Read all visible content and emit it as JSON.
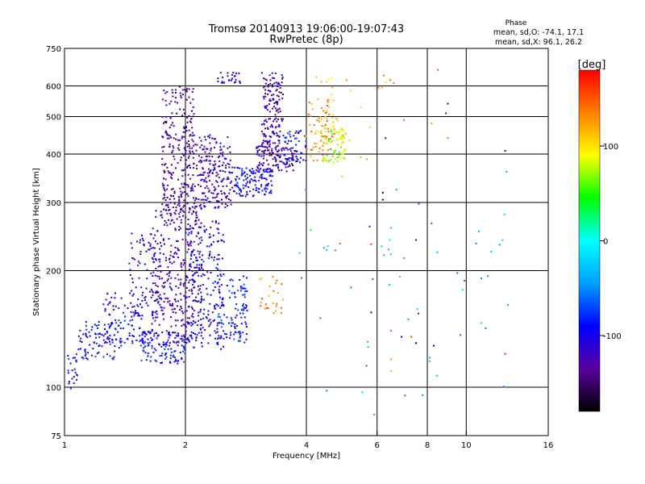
{
  "chart_data": {
    "type": "scatter",
    "title": "Tromsø 20140913 19:06:00-19:07:43",
    "subtitle": "RwPretec (8p)",
    "xlabel": "Frequency [MHz]",
    "ylabel": "Stationary phase Virtual Height [km]",
    "x_scale": "log",
    "y_scale": "log",
    "xlim": [
      1,
      16
    ],
    "ylim": [
      75,
      750
    ],
    "x_ticks": [
      {
        "value": 1,
        "label": "1"
      },
      {
        "value": 2,
        "label": "2"
      },
      {
        "value": 4,
        "label": "4"
      },
      {
        "value": 6,
        "label": "6"
      },
      {
        "value": 8,
        "label": "8"
      },
      {
        "value": 10,
        "label": "10"
      },
      {
        "value": 16,
        "label": "16"
      }
    ],
    "y_ticks": [
      {
        "value": 75,
        "label": "75"
      },
      {
        "value": 100,
        "label": "100"
      },
      {
        "value": 200,
        "label": "200"
      },
      {
        "value": 300,
        "label": "300"
      },
      {
        "value": 400,
        "label": "400"
      },
      {
        "value": 500,
        "label": "500"
      },
      {
        "value": 600,
        "label": "600"
      },
      {
        "value": 750,
        "label": "750"
      }
    ],
    "x_gridlines": [
      2,
      4,
      6,
      8,
      10
    ],
    "y_gridlines": [
      100,
      200,
      300,
      400,
      500,
      600
    ],
    "grid": true,
    "phase_stats": {
      "heading": "Phase",
      "line_o": "mean, sd,O: -74.1, 17.1",
      "line_x": "mean, sd,X:  96.1, 26.2"
    },
    "colorbar": {
      "label": "[deg]",
      "range": [
        -180,
        180
      ],
      "ticks": [
        {
          "value": 100,
          "label": "100"
        },
        {
          "value": 0,
          "label": "0"
        },
        {
          "value": -100,
          "label": "-100"
        }
      ],
      "colors": [
        "#000000",
        "#5a00a0",
        "#0000ff",
        "#00a0ff",
        "#00ffff",
        "#00ff00",
        "#ffff00",
        "#ff8000",
        "#ff0000"
      ]
    },
    "clusters": [
      {
        "f": [
          1.02,
          1.08
        ],
        "h": [
          98,
          122
        ],
        "phase": -95,
        "n": 22
      },
      {
        "f": [
          1.08,
          1.4
        ],
        "h": [
          118,
          148
        ],
        "phase": -92,
        "n": 90
      },
      {
        "f": [
          1.25,
          1.6
        ],
        "h": [
          130,
          175
        ],
        "phase": -100,
        "n": 90
      },
      {
        "f": [
          1.45,
          1.75
        ],
        "h": [
          150,
          250
        ],
        "phase": -105,
        "n": 100
      },
      {
        "f": [
          1.55,
          2.0
        ],
        "h": [
          115,
          140
        ],
        "phase": -90,
        "n": 120
      },
      {
        "f": [
          1.65,
          2.2
        ],
        "h": [
          130,
          300
        ],
        "phase": -120,
        "n": 330
      },
      {
        "f": [
          1.75,
          2.1
        ],
        "h": [
          280,
          600
        ],
        "phase": -135,
        "n": 260
      },
      {
        "f": [
          2.0,
          2.5
        ],
        "h": [
          125,
          270
        ],
        "phase": -100,
        "n": 220
      },
      {
        "f": [
          2.1,
          2.6
        ],
        "h": [
          290,
          450
        ],
        "phase": -115,
        "n": 200
      },
      {
        "f": [
          2.4,
          2.85
        ],
        "h": [
          130,
          190
        ],
        "phase": -85,
        "n": 90
      },
      {
        "f": [
          2.6,
          3.3
        ],
        "h": [
          310,
          370
        ],
        "phase": -95,
        "n": 130
      },
      {
        "f": [
          3.0,
          3.8
        ],
        "h": [
          360,
          420
        ],
        "phase": -118,
        "n": 110
      },
      {
        "f": [
          3.1,
          3.5
        ],
        "h": [
          400,
          650
        ],
        "phase": -125,
        "n": 170
      },
      {
        "f": [
          3.5,
          4.0
        ],
        "h": [
          380,
          460
        ],
        "phase": -85,
        "n": 50
      },
      {
        "f": [
          2.4,
          2.75
        ],
        "h": [
          610,
          650
        ],
        "phase": -110,
        "n": 25
      },
      {
        "f": [
          2.7,
          2.85
        ],
        "h": [
          150,
          200
        ],
        "phase": -80,
        "n": 20
      },
      {
        "f": [
          3.0,
          3.5
        ],
        "h": [
          155,
          195
        ],
        "phase": 135,
        "n": 25
      },
      {
        "f": [
          4.0,
          4.7
        ],
        "h": [
          380,
          560
        ],
        "phase": 135,
        "n": 70
      },
      {
        "f": [
          4.4,
          5.0
        ],
        "h": [
          380,
          470
        ],
        "phase": 75,
        "n": 70
      },
      {
        "f": [
          4.2,
          4.8
        ],
        "h": [
          450,
          650
        ],
        "phase": 100,
        "n": 25
      },
      {
        "f": [
          4.8,
          6.5
        ],
        "h": [
          350,
          640
        ],
        "phase": 120,
        "n": 18
      },
      {
        "f": [
          3.8,
          13.0
        ],
        "h": [
          95,
          330
        ],
        "phase": -40,
        "n": 45
      }
    ],
    "points": [
      {
        "f": 3.85,
        "h": 222,
        "phase": -20
      },
      {
        "f": 4.1,
        "h": 255,
        "phase": 40
      },
      {
        "f": 4.85,
        "h": 235,
        "phase": 150
      },
      {
        "f": 5.8,
        "h": 234,
        "phase": 165
      },
      {
        "f": 5.75,
        "h": 260,
        "phase": -80
      },
      {
        "f": 6.5,
        "h": 258,
        "phase": -30
      },
      {
        "f": 6.45,
        "h": 240,
        "phase": -10
      },
      {
        "f": 7.5,
        "h": 240,
        "phase": -130
      },
      {
        "f": 8.2,
        "h": 265,
        "phase": -60
      },
      {
        "f": 6.2,
        "h": 305,
        "phase": -170
      },
      {
        "f": 6.2,
        "h": 318,
        "phase": -170
      },
      {
        "f": 5.8,
        "h": 156,
        "phase": -100
      },
      {
        "f": 5.85,
        "h": 190,
        "phase": -60
      },
      {
        "f": 6.5,
        "h": 140,
        "phase": 150
      },
      {
        "f": 6.9,
        "h": 135,
        "phase": -100
      },
      {
        "f": 7.6,
        "h": 155,
        "phase": -80
      },
      {
        "f": 7.3,
        "h": 135,
        "phase": 160
      },
      {
        "f": 7.5,
        "h": 130,
        "phase": -170
      },
      {
        "f": 6.5,
        "h": 118,
        "phase": 130
      },
      {
        "f": 6.5,
        "h": 110,
        "phase": 115
      },
      {
        "f": 5.7,
        "h": 127,
        "phase": -30
      },
      {
        "f": 8.3,
        "h": 128,
        "phase": -90
      },
      {
        "f": 12.5,
        "h": 122,
        "phase": 170
      },
      {
        "f": 12.5,
        "h": 408,
        "phase": -150
      },
      {
        "f": 12.6,
        "h": 360,
        "phase": -40
      },
      {
        "f": 9.0,
        "h": 440,
        "phase": 140
      },
      {
        "f": 9.0,
        "h": 540,
        "phase": -150
      },
      {
        "f": 8.9,
        "h": 510,
        "phase": -130
      },
      {
        "f": 8.2,
        "h": 480,
        "phase": 120
      },
      {
        "f": 8.5,
        "h": 660,
        "phase": 150
      },
      {
        "f": 7.0,
        "h": 490,
        "phase": 150
      },
      {
        "f": 6.6,
        "h": 610,
        "phase": 145
      },
      {
        "f": 6.3,
        "h": 440,
        "phase": -150
      },
      {
        "f": 5.9,
        "h": 85,
        "phase": -40
      }
    ]
  }
}
